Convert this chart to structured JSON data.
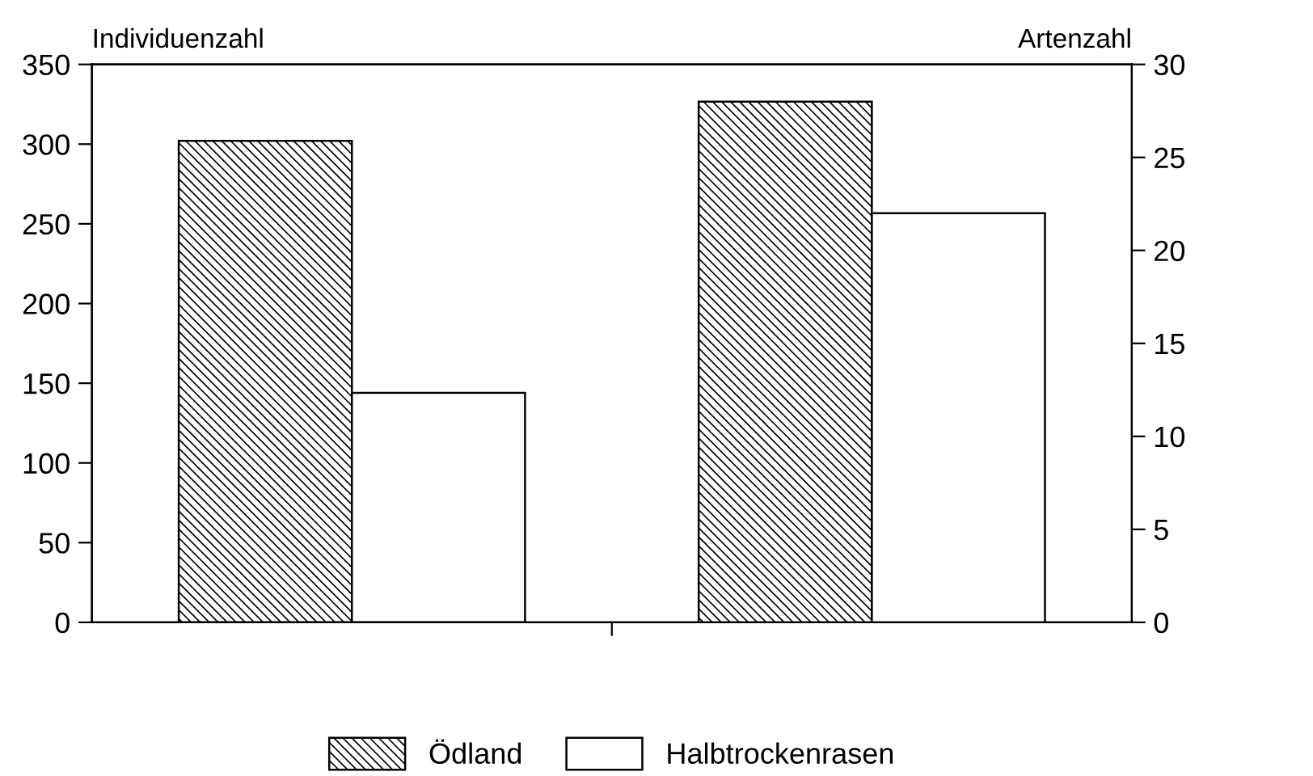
{
  "chart_data": {
    "type": "bar",
    "ylabel": "Individuenzahl",
    "y2label": "Artenzahl",
    "categories": [
      null,
      null
    ],
    "series": [
      {
        "name": "Ödland",
        "color": "#000000",
        "values": [
          302,
          null
        ]
      },
      {
        "name": "Halbtrockenrasen",
        "color": "#ffffff",
        "values": [
          144,
          null
        ]
      },
      {
        "color": "#000000",
        "values": [
          null,
          28
        ],
        "axis": "y2"
      },
      {
        "color": "#ffffff",
        "values": [
          null,
          22
        ],
        "axis": "y2"
      }
    ],
    "ylim": [
      0,
      350
    ],
    "yticks": [
      0,
      50,
      100,
      150,
      200,
      250,
      300,
      350
    ],
    "y2lim": [
      0,
      30
    ],
    "y2ticks": [
      0,
      5,
      10,
      15,
      20,
      25,
      30
    ],
    "tick_labels": "y",
    "grid": false,
    "legend": "bottom"
  }
}
